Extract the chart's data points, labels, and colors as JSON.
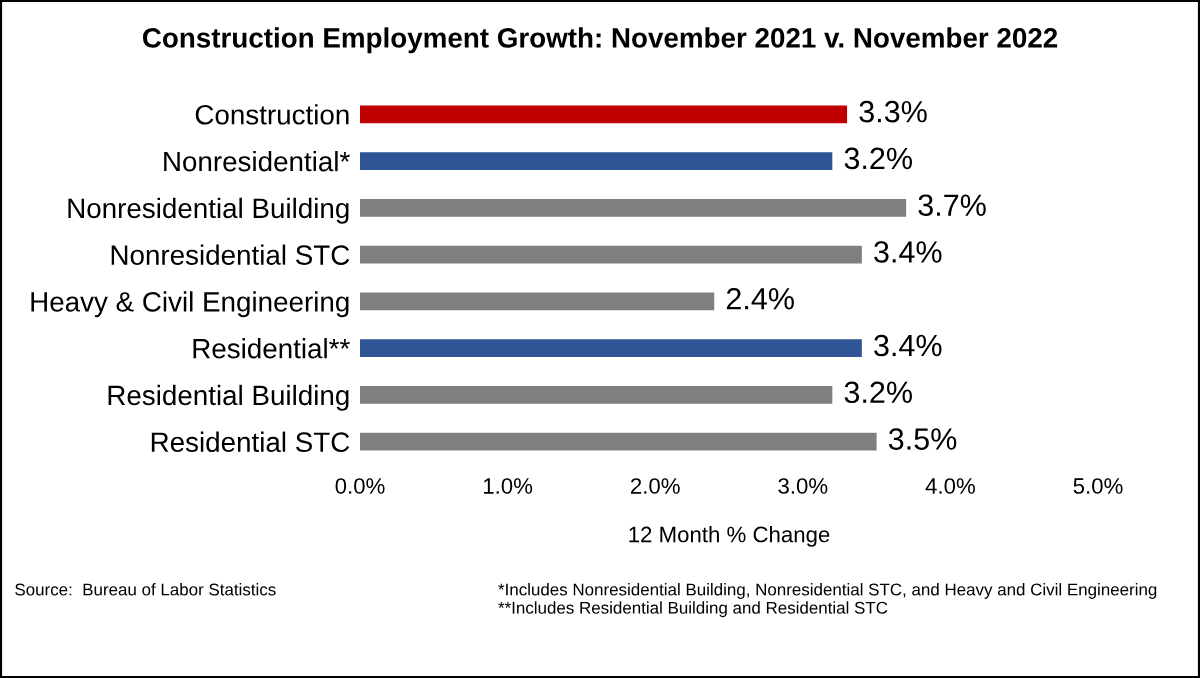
{
  "chart_data": {
    "type": "bar",
    "orientation": "horizontal",
    "title": "Construction Employment Growth: November 2021 v. November 2022",
    "categories": [
      "Construction",
      "Nonresidential*",
      "Nonresidential Building",
      "Nonresidential STC",
      "Heavy & Civil Engineering",
      "Residential**",
      "Residential Building",
      "Residential STC"
    ],
    "values": [
      3.3,
      3.2,
      3.7,
      3.4,
      2.4,
      3.4,
      3.2,
      3.5
    ],
    "colors": [
      "#c00000",
      "#2f5597",
      "#7f7f7f",
      "#7f7f7f",
      "#7f7f7f",
      "#2f5597",
      "#7f7f7f",
      "#7f7f7f"
    ],
    "value_labels": [
      "3.3%",
      "3.2%",
      "3.7%",
      "3.4%",
      "2.4%",
      "3.4%",
      "3.2%",
      "3.5%"
    ],
    "xlabel": "12 Month % Change",
    "xlim": [
      0,
      5
    ],
    "xticks": [
      {
        "value": 0,
        "label": "0.0%"
      },
      {
        "value": 1,
        "label": "1.0%"
      },
      {
        "value": 2,
        "label": "2.0%"
      },
      {
        "value": 3,
        "label": "3.0%"
      },
      {
        "value": 4,
        "label": "4.0%"
      },
      {
        "value": 5,
        "label": "5.0%"
      }
    ],
    "grid": false,
    "legend": false,
    "annotations": [
      "Source:  Bureau of Labor Statistics",
      "*Includes Nonresidential Building, Nonresidential STC, and Heavy and Civil Engineering\n**Includes Residential Building and Residential STC"
    ]
  }
}
